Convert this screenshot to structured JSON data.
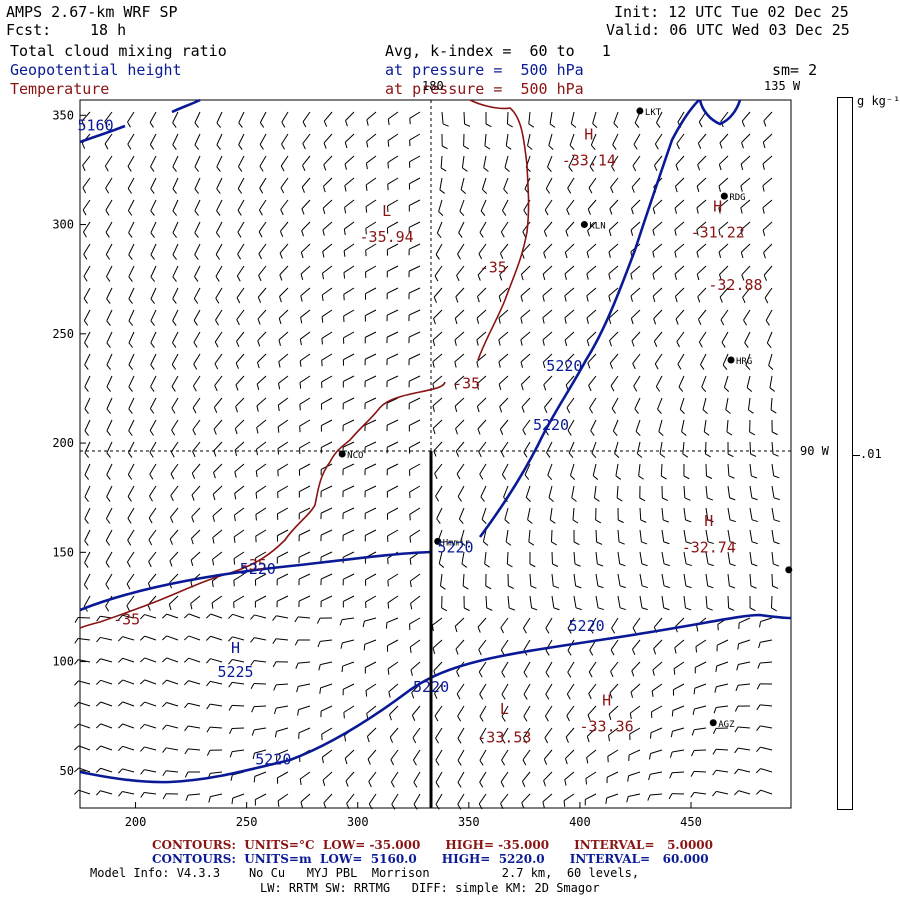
{
  "header": {
    "model": "AMPS 2.67-km WRF SP",
    "forecast_label": "Fcst:",
    "forecast_hours": "18 h",
    "init": "Init: 12 UTC Tue 02 Dec 25",
    "valid": "Valid: 06 UTC Wed 03 Dec 25",
    "field1": "Total cloud mixing ratio",
    "field2": "Geopotential height",
    "field3": "Temperature",
    "avg": "Avg, k-index =  60 to   1",
    "pressure1": "at pressure =  500 hPa",
    "pressure2": "at pressure =  500 hPa",
    "smoothing": "sm= 2"
  },
  "map": {
    "lon_labels": [
      {
        "text": "180",
        "x": 432
      },
      {
        "text": "135 W",
        "x": 790
      },
      {
        "text": "90 W",
        "x": 815
      }
    ],
    "x_ticks": [
      200,
      250,
      300,
      350,
      400,
      450
    ],
    "y_ticks": [
      50,
      100,
      150,
      200,
      250,
      300,
      350
    ],
    "x_range": [
      175,
      495
    ],
    "y_range": [
      33,
      357
    ],
    "stations": [
      {
        "name": "LKT",
        "x": 427,
        "y": 352
      },
      {
        "name": "RDG",
        "x": 465,
        "y": 313
      },
      {
        "name": "KLN",
        "x": 402,
        "y": 300
      },
      {
        "name": "HRG",
        "x": 468,
        "y": 238
      },
      {
        "name": "NCO",
        "x": 293,
        "y": 195
      },
      {
        "name": "Hmmjr",
        "x": 336,
        "y": 155
      },
      {
        "name": "AGZ",
        "x": 460,
        "y": 72
      },
      {
        "name": "",
        "x": 494,
        "y": 142
      }
    ],
    "temp_labels": [
      {
        "text": "H",
        "x": 404,
        "y": 339
      },
      {
        "text": "-33.14",
        "x": 404,
        "y": 327
      },
      {
        "text": "L",
        "x": 313,
        "y": 304
      },
      {
        "text": "-35.94",
        "x": 313,
        "y": 292
      },
      {
        "text": "H",
        "x": 462,
        "y": 306
      },
      {
        "text": "-31.22",
        "x": 462,
        "y": 294
      },
      {
        "text": "-32.88",
        "x": 470,
        "y": 270
      },
      {
        "text": "-35",
        "x": 361,
        "y": 278
      },
      {
        "text": "-35",
        "x": 349,
        "y": 225
      },
      {
        "text": "H",
        "x": 458,
        "y": 162
      },
      {
        "text": "-32.74",
        "x": 458,
        "y": 150
      },
      {
        "text": "-35",
        "x": 253,
        "y": 142
      },
      {
        "text": "-35",
        "x": 196,
        "y": 117
      },
      {
        "text": "H",
        "x": 412,
        "y": 80
      },
      {
        "text": "-33.36",
        "x": 412,
        "y": 68
      },
      {
        "text": "L",
        "x": 366,
        "y": 76
      },
      {
        "text": "-33.53",
        "x": 366,
        "y": 63
      }
    ],
    "height_labels": [
      {
        "text": "5160",
        "x": 182,
        "y": 343
      },
      {
        "text": "5220",
        "x": 393,
        "y": 233
      },
      {
        "text": "5220",
        "x": 387,
        "y": 206
      },
      {
        "text": "5220",
        "x": 344,
        "y": 150
      },
      {
        "text": "5220",
        "x": 255,
        "y": 140
      },
      {
        "text": "H",
        "x": 245,
        "y": 104
      },
      {
        "text": "5225",
        "x": 245,
        "y": 93
      },
      {
        "text": "5220",
        "x": 403,
        "y": 114
      },
      {
        "text": "5220",
        "x": 333,
        "y": 86
      },
      {
        "text": "5220",
        "x": 262,
        "y": 53
      }
    ]
  },
  "colorbar": {
    "unit": "g kg⁻¹",
    "tick_label": ".01"
  },
  "footer": {
    "temp_contours": "CONTOURS:  UNITS=°C  LOW= -35.000      HIGH= -35.000      INTERVAL=   5.0000",
    "height_contours": "CONTOURS:  UNITS=m  LOW=  5160.0      HIGH=  5220.0      INTERVAL=   60.000",
    "model_info": "Model Info: V4.3.3    No Cu   MYJ PBL  Morrison          2.7 km,  60 levels,",
    "model_info2": "LW: RRTM SW: RRTMG   DIFF: simple KM: 2D Smagor"
  },
  "colors": {
    "temperature": "#8a1414",
    "height": "#0a1a96",
    "text": "#000000"
  }
}
